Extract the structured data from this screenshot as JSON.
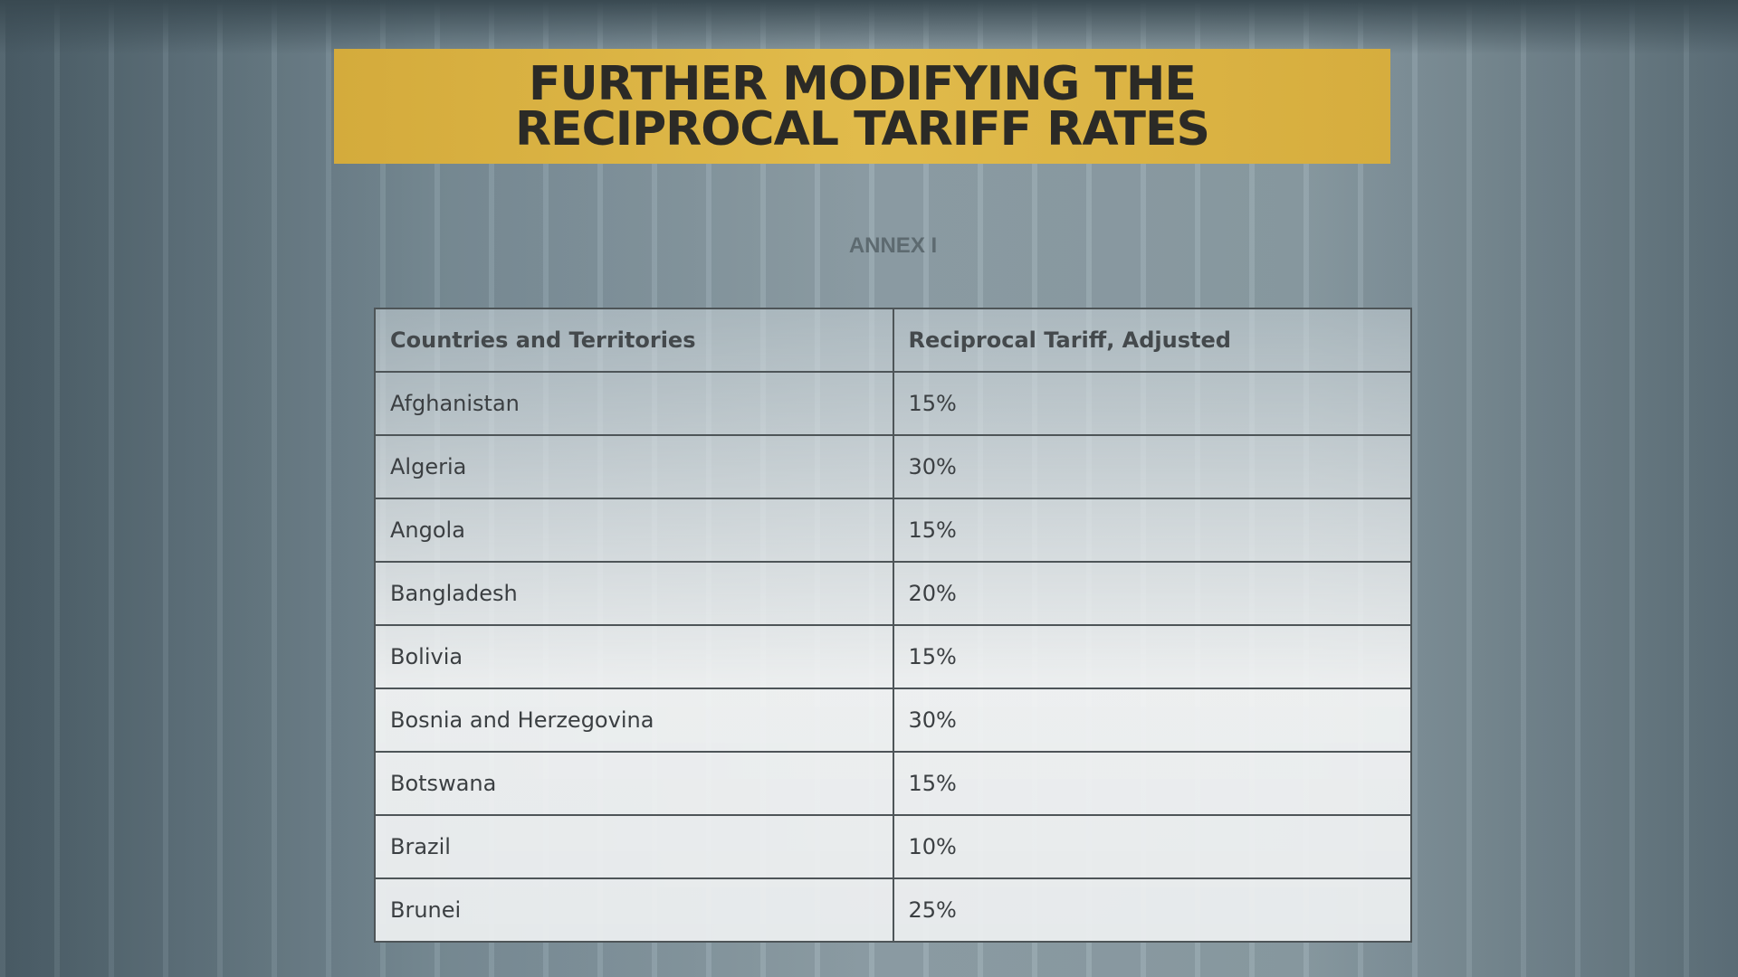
{
  "header": {
    "title_lines": [
      "FURTHER MODIFYING THE",
      "RECIPROCAL TARIFF RATES"
    ]
  },
  "annex": "ANNEX I",
  "table": {
    "columns": [
      "Countries and Territories",
      "Reciprocal Tariff, Adjusted"
    ],
    "rows": [
      [
        "Afghanistan",
        "15%"
      ],
      [
        "Algeria",
        "30%"
      ],
      [
        "Angola",
        "15%"
      ],
      [
        "Bangladesh",
        "20%"
      ],
      [
        "Bolivia",
        "15%"
      ],
      [
        "Bosnia and Herzegovina",
        "30%"
      ],
      [
        "Botswana",
        "15%"
      ],
      [
        "Brazil",
        "10%"
      ],
      [
        "Brunei",
        "25%"
      ]
    ]
  }
}
